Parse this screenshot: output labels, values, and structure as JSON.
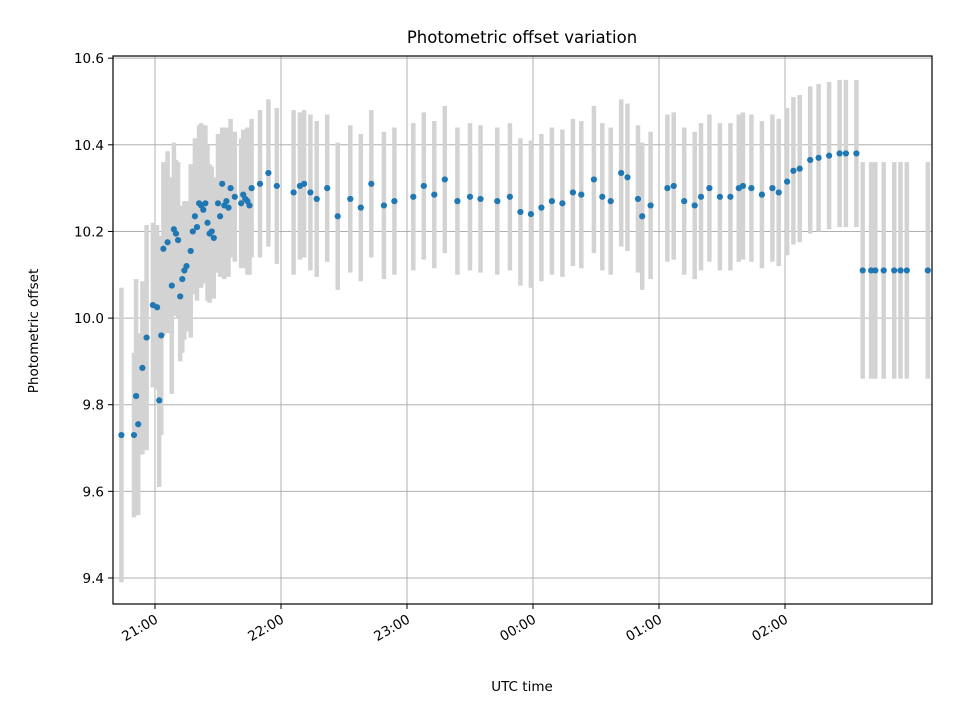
{
  "chart_data": {
    "type": "scatter",
    "title": "Photometric offset variation",
    "xlabel": "UTC time",
    "ylabel": "Photometric offset",
    "x_unit": "UTC time (HH:MM)",
    "xlim": [
      "20:40",
      "03:10"
    ],
    "ylim": [
      9.34,
      10.605
    ],
    "x_ticks": [
      "21:00",
      "22:00",
      "23:00",
      "00:00",
      "01:00",
      "02:00"
    ],
    "y_ticks": [
      "9.4",
      "9.6",
      "9.8",
      "10.0",
      "10.2",
      "10.4",
      "10.6"
    ],
    "grid": true,
    "legend": "none",
    "colors": {
      "point": "#1f77b4",
      "errorbar": "#d3d3d3",
      "grid": "#b0b0b0"
    },
    "series": [
      {
        "x": [
          "20:44",
          "20:50",
          "20:51",
          "20:52",
          "20:54",
          "20:56",
          "20:59",
          "21:01",
          "21:02",
          "21:03",
          "21:04",
          "21:06",
          "21:08",
          "21:09",
          "21:10",
          "21:11",
          "21:12",
          "21:13",
          "21:14",
          "21:15",
          "21:17",
          "21:18",
          "21:19",
          "21:20",
          "21:21",
          "21:22",
          "21:23",
          "21:24",
          "21:25",
          "21:26",
          "21:27",
          "21:28",
          "21:30",
          "21:31",
          "21:32",
          "21:33",
          "21:34",
          "21:35",
          "21:36",
          "21:38",
          "21:41",
          "21:42",
          "21:43",
          "21:44",
          "21:45",
          "21:46",
          "21:50",
          "21:54",
          "21:58",
          "22:06",
          "22:09",
          "22:11",
          "22:14",
          "22:17",
          "22:22",
          "22:27",
          "22:33",
          "22:38",
          "22:43",
          "22:49",
          "22:54",
          "23:03",
          "23:08",
          "23:13",
          "23:18",
          "23:24",
          "23:30",
          "23:35",
          "23:43",
          "23:49",
          "23:54",
          "23:59",
          "00:04",
          "00:09",
          "00:14",
          "00:19",
          "00:23",
          "00:29",
          "00:33",
          "00:37",
          "00:42",
          "00:45",
          "00:50",
          "00:52",
          "00:56",
          "01:04",
          "01:07",
          "01:12",
          "01:17",
          "01:20",
          "01:24",
          "01:29",
          "01:34",
          "01:38",
          "01:40",
          "01:44",
          "01:49",
          "01:54",
          "01:57",
          "02:01",
          "02:04",
          "02:07",
          "02:12",
          "02:16",
          "02:21",
          "02:26",
          "02:29",
          "02:34",
          "02:37",
          "02:41",
          "02:43",
          "02:47",
          "02:52",
          "02:55",
          "02:58",
          "03:08"
        ],
        "y": [
          9.73,
          9.73,
          9.82,
          9.755,
          9.885,
          9.955,
          10.03,
          10.025,
          9.81,
          9.96,
          10.16,
          10.175,
          10.075,
          10.205,
          10.195,
          10.18,
          10.05,
          10.09,
          10.11,
          10.12,
          10.155,
          10.2,
          10.235,
          10.21,
          10.265,
          10.26,
          10.25,
          10.265,
          10.22,
          10.195,
          10.2,
          10.185,
          10.265,
          10.235,
          10.31,
          10.26,
          10.27,
          10.255,
          10.3,
          10.28,
          10.265,
          10.285,
          10.275,
          10.27,
          10.26,
          10.3,
          10.31,
          10.335,
          10.305,
          10.29,
          10.305,
          10.31,
          10.29,
          10.275,
          10.3,
          10.235,
          10.275,
          10.255,
          10.31,
          10.26,
          10.27,
          10.28,
          10.305,
          10.285,
          10.32,
          10.27,
          10.28,
          10.275,
          10.27,
          10.28,
          10.245,
          10.24,
          10.255,
          10.27,
          10.265,
          10.29,
          10.285,
          10.32,
          10.28,
          10.27,
          10.335,
          10.325,
          10.275,
          10.235,
          10.26,
          10.3,
          10.305,
          10.27,
          10.26,
          10.28,
          10.3,
          10.28,
          10.28,
          10.3,
          10.305,
          10.3,
          10.285,
          10.3,
          10.29,
          10.315,
          10.34,
          10.345,
          10.365,
          10.37,
          10.375,
          10.38,
          10.38,
          10.38,
          10.11,
          10.11,
          10.11,
          10.11,
          10.11,
          10.11,
          10.11,
          10.11
        ],
        "yerr": [
          0.34,
          0.19,
          0.27,
          0.21,
          0.2,
          0.26,
          0.19,
          0.19,
          0.2,
          0.23,
          0.2,
          0.21,
          0.25,
          0.2,
          0.17,
          0.18,
          0.15,
          0.17,
          0.16,
          0.15,
          0.2,
          0.14,
          0.18,
          0.17,
          0.18,
          0.19,
          0.17,
          0.18,
          0.18,
          0.16,
          0.15,
          0.14,
          0.16,
          0.14,
          0.13,
          0.17,
          0.17,
          0.16,
          0.16,
          0.15,
          0.15,
          0.15,
          0.16,
          0.17,
          0.16,
          0.16,
          0.17,
          0.17,
          0.18,
          0.19,
          0.17,
          0.17,
          0.18,
          0.18,
          0.17,
          0.17,
          0.17,
          0.17,
          0.17,
          0.17,
          0.17,
          0.17,
          0.17,
          0.17,
          0.17,
          0.17,
          0.17,
          0.17,
          0.17,
          0.17,
          0.17,
          0.17,
          0.17,
          0.17,
          0.17,
          0.17,
          0.17,
          0.17,
          0.17,
          0.17,
          0.17,
          0.17,
          0.17,
          0.17,
          0.17,
          0.17,
          0.17,
          0.17,
          0.17,
          0.17,
          0.17,
          0.17,
          0.17,
          0.17,
          0.17,
          0.17,
          0.17,
          0.17,
          0.17,
          0.17,
          0.17,
          0.17,
          0.17,
          0.17,
          0.17,
          0.17,
          0.17,
          0.17,
          0.25,
          0.25,
          0.25,
          0.25,
          0.25,
          0.25,
          0.25,
          0.25
        ]
      }
    ]
  }
}
